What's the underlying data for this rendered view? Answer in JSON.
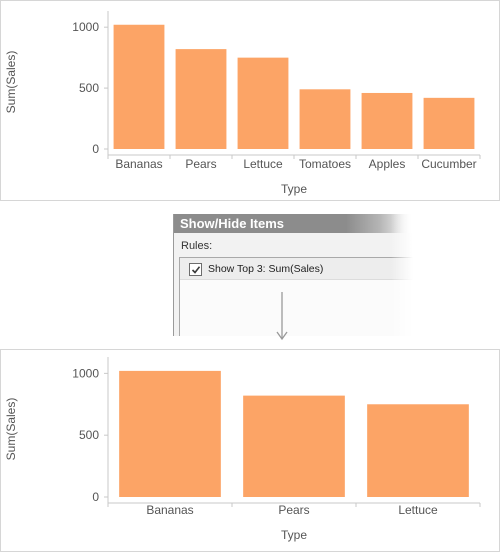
{
  "colors": {
    "bar": "#FCA466",
    "axis": "#c8c8c8",
    "text": "#555555",
    "dialog_title_bg": "#8c8c8c",
    "arrow": "#999999"
  },
  "chart_data": [
    {
      "type": "bar",
      "categories": [
        "Bananas",
        "Pears",
        "Lettuce",
        "Tomatoes",
        "Apples",
        "Cucumber"
      ],
      "values": [
        1020,
        820,
        750,
        490,
        460,
        420
      ],
      "xlabel": "Type",
      "ylabel": "Sum(Sales)",
      "yticks": [
        0,
        500,
        1000
      ],
      "ylim": [
        0,
        1100
      ],
      "grid": false,
      "legend": "none"
    },
    {
      "type": "bar",
      "categories": [
        "Bananas",
        "Pears",
        "Lettuce"
      ],
      "values": [
        1020,
        820,
        750
      ],
      "xlabel": "Type",
      "ylabel": "Sum(Sales)",
      "yticks": [
        0,
        500,
        1000
      ],
      "ylim": [
        0,
        1100
      ],
      "grid": false,
      "legend": "none"
    }
  ],
  "dialog": {
    "title": "Show/Hide Items",
    "rules_label": "Rules:",
    "rules": [
      {
        "label": "Show Top 3: Sum(Sales)",
        "checked": true
      }
    ]
  },
  "icons": {
    "rule_checkbox": "checkmark-icon",
    "connector": "arrow-down-icon"
  }
}
